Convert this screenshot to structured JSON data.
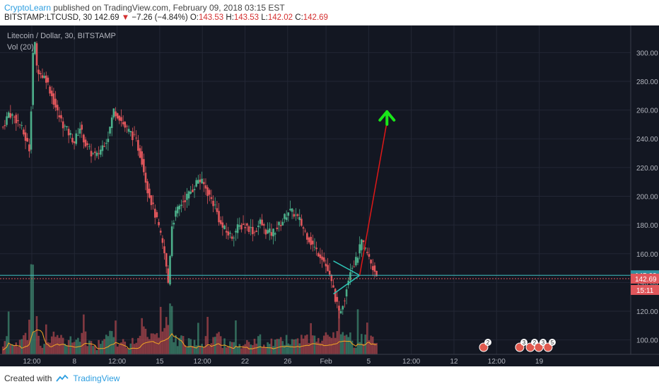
{
  "header": {
    "author": "CryptoLearn",
    "published_text": "published on TradingView.com, February 09, 2018 03:15 EST",
    "symbol": "BITSTAMP:LTCUSD, 30",
    "last_price": "142.69",
    "change_arrow": "▼",
    "change": "−7.26 (−4.84%)",
    "o_label": "O:",
    "o": "143.53",
    "h_label": "H:",
    "h": "143.53",
    "l_label": "L:",
    "l": "142.02",
    "c_label": "C:",
    "c": "142.69"
  },
  "footer": {
    "created_with": "Created with",
    "brand": "TradingView"
  },
  "colors": {
    "background": "#131722",
    "grid": "#232735",
    "axis_text": "#b2b5be",
    "up": "#4caf8a",
    "down": "#e0565b",
    "volume_ma": "#f5a623",
    "annotation_arrow": "#e01818",
    "target_arrow": "#19e619",
    "triangle": "#2ec4b6",
    "price_line": "#3fbfbf",
    "current_price_tag": "#e0565b",
    "resistance_tag": "#2f8f9f"
  },
  "chart_data": {
    "type": "line",
    "legend": [
      "Litecoin / Dollar, 30, BITSTAMP",
      "Vol (20)"
    ],
    "x_ticks": [
      "12:00",
      "8",
      "12:00",
      "15",
      "12:00",
      "22",
      "26",
      "Feb",
      "5",
      "12:00",
      "12",
      "12:00",
      "19"
    ],
    "y_ticks": [
      100,
      120,
      140,
      160,
      180,
      200,
      220,
      240,
      260,
      280,
      300
    ],
    "ylim": [
      90,
      310
    ],
    "price_series": {
      "name": "LTCUSD",
      "x": [
        0,
        3,
        6,
        9,
        12,
        14,
        15,
        16,
        17,
        18,
        20,
        23,
        26,
        29,
        32,
        35,
        38,
        41,
        44,
        47,
        50,
        53,
        56,
        59,
        62,
        65,
        68,
        71,
        74,
        77,
        80,
        83,
        86,
        88,
        90,
        92,
        95,
        98,
        101,
        104,
        107,
        110,
        113,
        116,
        119,
        122,
        125,
        128,
        131,
        134,
        137,
        140,
        143,
        146,
        149,
        152,
        155,
        158,
        161,
        164,
        167,
        170,
        173,
        176,
        179,
        182,
        185,
        188,
        191,
        194,
        197,
        200
      ],
      "values": [
        248,
        258,
        255,
        250,
        240,
        233,
        262,
        300,
        305,
        290,
        285,
        282,
        270,
        258,
        250,
        244,
        238,
        248,
        236,
        230,
        228,
        235,
        242,
        260,
        255,
        248,
        244,
        238,
        225,
        205,
        192,
        178,
        160,
        140,
        180,
        188,
        195,
        200,
        205,
        212,
        208,
        200,
        193,
        180,
        175,
        172,
        178,
        180,
        178,
        175,
        182,
        176,
        174,
        178,
        183,
        190,
        188,
        183,
        175,
        168,
        162,
        158,
        148,
        135,
        118,
        130,
        150,
        155,
        168,
        160,
        150,
        145
      ]
    },
    "triangle_pattern": {
      "upper": [
        [
          176,
          155
        ],
        [
          190,
          146
        ]
      ],
      "lower": [
        [
          176,
          132
        ],
        [
          190,
          145
        ]
      ],
      "apex": [
        190,
        145
      ]
    },
    "projection_arrow": {
      "from": [
        190,
        145
      ],
      "to": [
        197,
        252
      ]
    },
    "price_lines": [
      {
        "name": "resistance",
        "value": 145.02,
        "label": "145.02"
      },
      {
        "name": "current",
        "value": 142.69,
        "label": "142.69"
      }
    ],
    "countdown_label": "15:11",
    "event_badges": [
      "2",
      "3",
      "2",
      "3",
      "5"
    ]
  }
}
